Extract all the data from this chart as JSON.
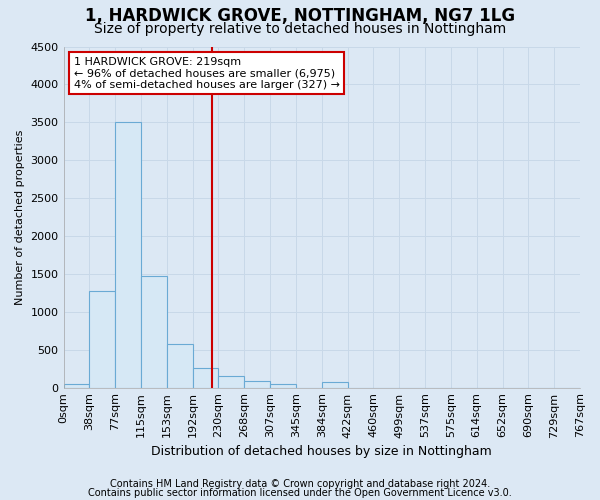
{
  "title1": "1, HARDWICK GROVE, NOTTINGHAM, NG7 1LG",
  "title2": "Size of property relative to detached houses in Nottingham",
  "xlabel": "Distribution of detached houses by size in Nottingham",
  "ylabel": "Number of detached properties",
  "footnote1": "Contains HM Land Registry data © Crown copyright and database right 2024.",
  "footnote2": "Contains public sector information licensed under the Open Government Licence v3.0.",
  "bin_labels": [
    "0sqm",
    "38sqm",
    "77sqm",
    "115sqm",
    "153sqm",
    "192sqm",
    "230sqm",
    "268sqm",
    "307sqm",
    "345sqm",
    "384sqm",
    "422sqm",
    "460sqm",
    "499sqm",
    "537sqm",
    "575sqm",
    "614sqm",
    "652sqm",
    "690sqm",
    "729sqm",
    "767sqm"
  ],
  "num_bins": 20,
  "bar_heights": [
    50,
    1280,
    3500,
    1470,
    580,
    255,
    150,
    90,
    50,
    0,
    80,
    0,
    0,
    0,
    0,
    0,
    0,
    0,
    0,
    0
  ],
  "bar_color": "#d6e8f5",
  "bar_edge_color": "#6aaad4",
  "property_size_bin": 5.75,
  "marker_line_color": "#cc0000",
  "annotation_line1": "1 HARDWICK GROVE: 219sqm",
  "annotation_line2": "← 96% of detached houses are smaller (6,975)",
  "annotation_line3": "4% of semi-detached houses are larger (327) →",
  "annotation_box_color": "#ffffff",
  "annotation_box_edge": "#cc0000",
  "ylim": [
    0,
    4500
  ],
  "yticks": [
    0,
    500,
    1000,
    1500,
    2000,
    2500,
    3000,
    3500,
    4000,
    4500
  ],
  "grid_color": "#c8d8e8",
  "background_color": "#dce8f4",
  "title1_fontsize": 12,
  "title2_fontsize": 10,
  "axis_fontsize": 8,
  "xlabel_fontsize": 9,
  "ylabel_fontsize": 8,
  "footnote_fontsize": 7
}
